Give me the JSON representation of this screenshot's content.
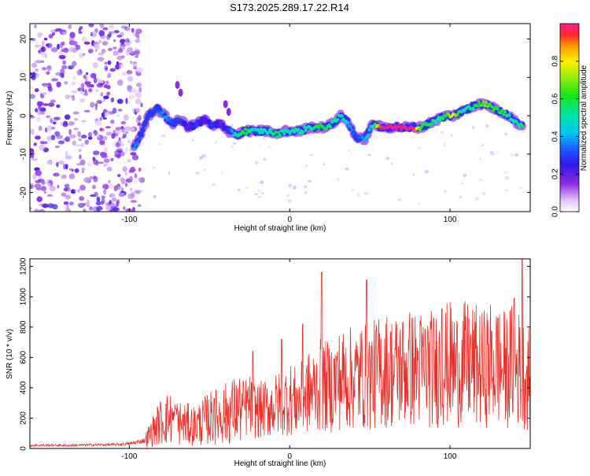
{
  "title": "S173.2025.289.17.22.R14",
  "chart_data": [
    {
      "type": "heatmap",
      "name": "spectrogram",
      "xlabel": "Height of straight line (km)",
      "ylabel": "Frequency (Hz)",
      "xlim": [
        -162,
        150
      ],
      "ylim": [
        -25,
        24
      ],
      "xticks": [
        -100,
        0,
        100
      ],
      "xtick_labels": [
        "-100",
        "0",
        "100"
      ],
      "yticks": [
        -20,
        -10,
        0,
        10,
        20
      ],
      "ytick_labels": [
        "-20",
        "-10",
        "0",
        "10",
        "20"
      ],
      "colorbar": {
        "label": "Normalized spectral amplitude",
        "range": [
          0,
          1
        ],
        "ticks": [
          0.0,
          0.2,
          0.4,
          0.6,
          0.8
        ],
        "tick_labels": [
          "0.0",
          "0.2",
          "0.4",
          "0.6",
          "0.8"
        ]
      },
      "ridge": {
        "description_points_x": [
          -97,
          -93,
          -88,
          -83,
          -78,
          -73,
          -68,
          -63,
          -58,
          -53,
          -48,
          -43,
          -38,
          -33,
          -28,
          -23,
          -18,
          -13,
          -8,
          -3,
          2,
          7,
          12,
          17,
          22,
          27,
          32,
          37,
          42,
          47,
          52,
          57,
          62,
          67,
          72,
          77,
          82,
          87,
          92,
          97,
          102,
          107,
          112,
          117,
          122,
          127,
          132,
          137,
          142,
          146
        ],
        "description_points_y": [
          -8,
          -5,
          0,
          2,
          0,
          -2,
          -1,
          -3,
          -2,
          -1,
          -3,
          -2,
          -4,
          -5,
          -4,
          -4,
          -4,
          -4,
          -5,
          -4,
          -4,
          -4,
          -3,
          -3,
          -3,
          -2,
          0,
          -2,
          -6,
          -6,
          -2,
          -3,
          -3,
          -3,
          -3,
          -3,
          -3,
          -2,
          -1,
          0,
          0,
          1,
          2,
          3,
          3,
          2,
          1,
          0,
          -2,
          -3
        ],
        "amplitude": [
          0.4,
          0.3,
          0.3,
          0.3,
          0.4,
          0.3,
          0.3,
          0.2,
          0.3,
          0.2,
          0.3,
          0.2,
          0.3,
          0.5,
          0.6,
          0.5,
          0.5,
          0.5,
          0.6,
          0.5,
          0.5,
          0.5,
          0.5,
          0.6,
          0.6,
          0.5,
          0.5,
          0.4,
          0.3,
          0.4,
          0.5,
          1.0,
          1.0,
          1.0,
          1.0,
          1.0,
          0.6,
          0.6,
          0.5,
          0.6,
          0.8,
          0.5,
          0.5,
          0.6,
          0.7,
          0.6,
          0.6,
          0.5,
          0.5,
          0.6
        ]
      }
    },
    {
      "type": "line",
      "name": "snr",
      "xlabel": "Height of straight line (km)",
      "ylabel": "SNR (10 * v/v)",
      "xlim": [
        -162,
        150
      ],
      "ylim": [
        0,
        1250
      ],
      "xticks": [
        -100,
        0,
        100
      ],
      "xtick_labels": [
        "-100",
        "0",
        "100"
      ],
      "yticks": [
        0,
        200,
        400,
        600,
        800,
        1000,
        1200
      ],
      "ytick_labels": [
        "0",
        "200",
        "400",
        "600",
        "800",
        "1000",
        "1200"
      ],
      "series": [
        {
          "name": "SNR",
          "color": "#e8302a",
          "x": [
            -162,
            -150,
            -140,
            -130,
            -120,
            -110,
            -100,
            -90,
            -85,
            -80,
            -75,
            -70,
            -65,
            -60,
            -55,
            -50,
            -45,
            -40,
            -35,
            -30,
            -25,
            -20,
            -15,
            -10,
            -5,
            0,
            5,
            10,
            15,
            20,
            25,
            30,
            35,
            40,
            45,
            50,
            55,
            60,
            65,
            70,
            75,
            80,
            85,
            90,
            95,
            100,
            105,
            110,
            115,
            120,
            125,
            130,
            135,
            140,
            145,
            150
          ],
          "values": [
            20,
            22,
            20,
            22,
            24,
            25,
            30,
            55,
            120,
            180,
            200,
            170,
            160,
            150,
            170,
            200,
            210,
            230,
            250,
            260,
            280,
            250,
            260,
            280,
            300,
            330,
            300,
            360,
            380,
            420,
            400,
            450,
            460,
            460,
            480,
            470,
            500,
            520,
            510,
            520,
            530,
            520,
            540,
            520,
            540,
            560,
            530,
            560,
            550,
            520,
            560,
            540,
            520,
            560,
            500,
            460
          ],
          "peaks": [
            {
              "x": -71,
              "value": 260
            },
            {
              "x": -47,
              "value": 330
            },
            {
              "x": -23,
              "value": 640
            },
            {
              "x": -5,
              "value": 720
            },
            {
              "x": 8,
              "value": 820
            },
            {
              "x": 20,
              "value": 1160
            },
            {
              "x": 48,
              "value": 1110
            },
            {
              "x": 95,
              "value": 920
            },
            {
              "x": 130,
              "value": 860
            },
            {
              "x": 140,
              "value": 990
            },
            {
              "x": 145,
              "value": 1250
            }
          ]
        }
      ]
    }
  ]
}
